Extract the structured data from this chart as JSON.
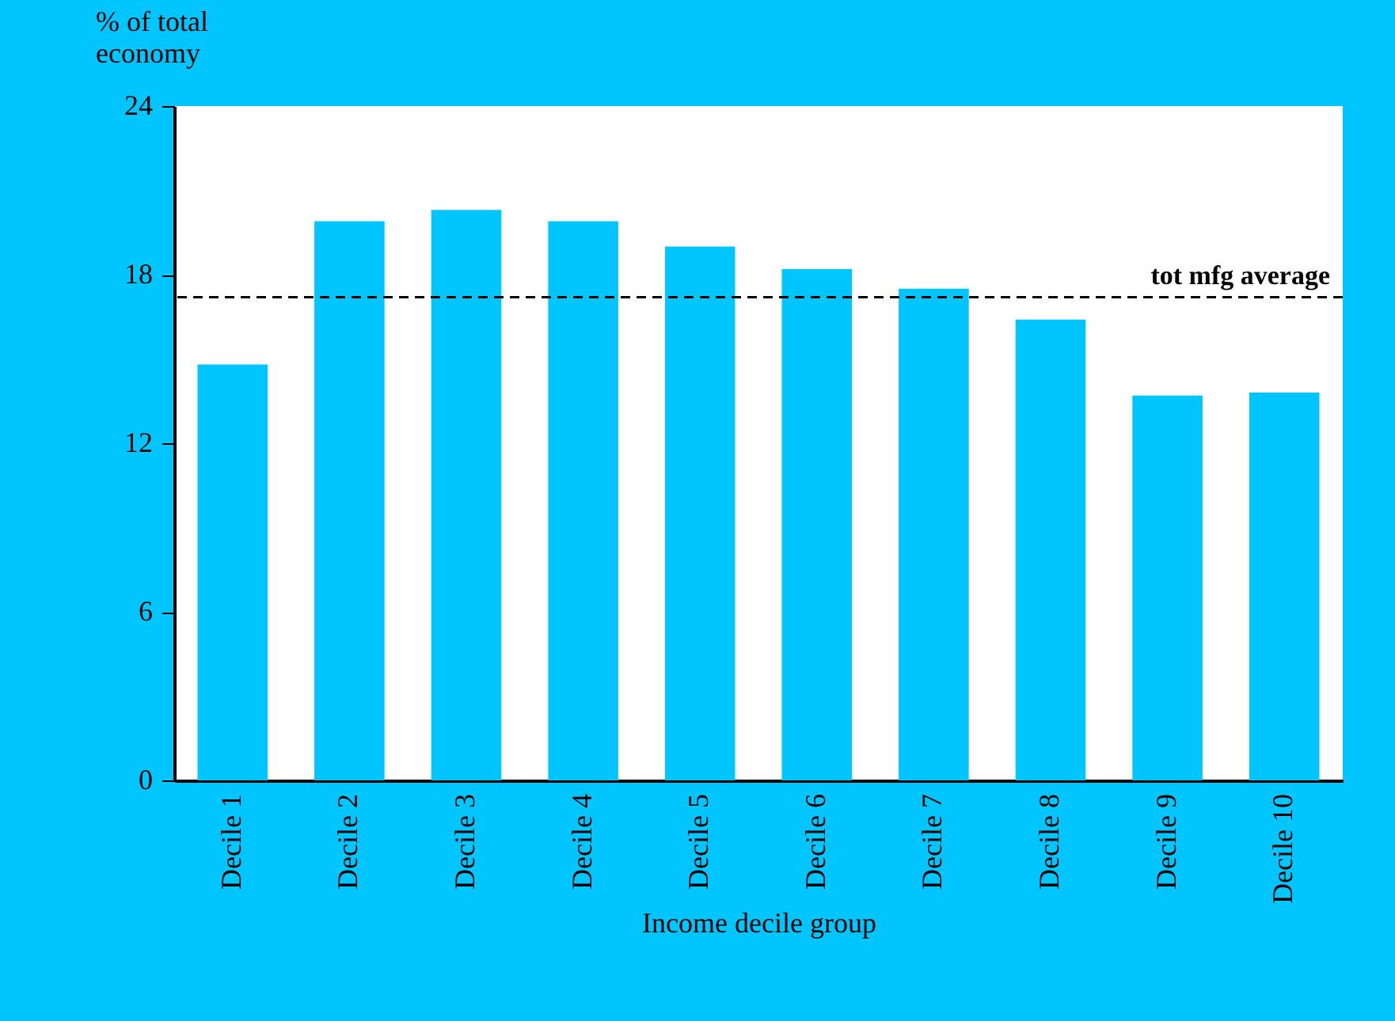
{
  "chart_data": {
    "type": "bar",
    "xlabel": "Income decile group",
    "ylabel": "% of total economy",
    "categories": [
      "Decile 1",
      "Decile 2",
      "Decile 3",
      "Decile 4",
      "Decile 5",
      "Decile 6",
      "Decile 7",
      "Decile 8",
      "Decile 9",
      "Decile 10"
    ],
    "values": [
      14.8,
      19.9,
      20.3,
      19.9,
      19.0,
      18.2,
      17.5,
      16.4,
      13.7,
      13.8
    ],
    "color": "#00c5ff",
    "ylim": [
      0,
      24
    ],
    "yticks": [
      0,
      6,
      12,
      18,
      24
    ],
    "ref_lines": [
      {
        "axis": "y",
        "value": 17.2,
        "label": "tot mfg average",
        "color": "#000000",
        "line_style": "dashed"
      }
    ],
    "grid": false
  }
}
